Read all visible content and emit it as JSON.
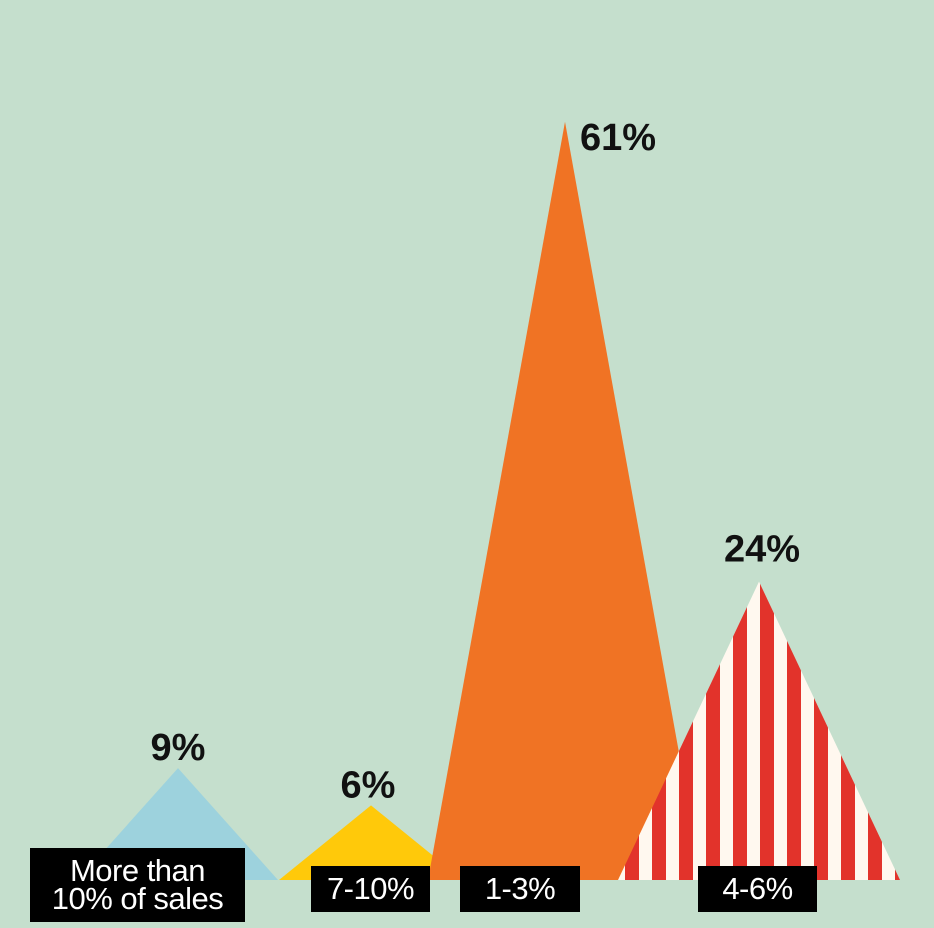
{
  "chart_data": {
    "type": "triangle",
    "categories": [
      "More than 10% of sales",
      "7-10%",
      "1-3%",
      "4-6%"
    ],
    "values": [
      9,
      6,
      61,
      24
    ],
    "value_labels": [
      "9%",
      "6%",
      "61%",
      "24%"
    ],
    "colors": [
      "#98d0df",
      "#ffc90a",
      "#f07324",
      "#e2332b"
    ]
  }
}
